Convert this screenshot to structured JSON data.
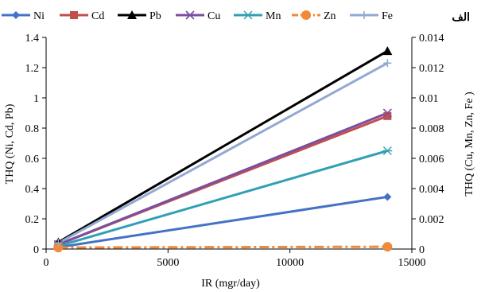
{
  "chart_data": {
    "type": "line",
    "panel_label": "الف",
    "xlabel": "IR (mgr/day)",
    "ylabel_left": "THQ (Ni, Cd, Pb)",
    "ylabel_right": "THQ (Cu, Mn, Zn, Fe )",
    "xlim": [
      0,
      15000
    ],
    "ylim_left": [
      0,
      1.4
    ],
    "ylim_right": [
      0,
      0.014
    ],
    "x_ticks": [
      "0",
      "5000",
      "10000",
      "15000"
    ],
    "y_left_ticks": [
      "0",
      "0.2",
      "0.4",
      "0.6",
      "0.8",
      "1",
      "1.2",
      "1.4"
    ],
    "y_right_ticks": [
      "0",
      "0.002",
      "0.004",
      "0.006",
      "0.008",
      "0.01",
      "0.012",
      "0.014"
    ],
    "x": [
      500,
      14000
    ],
    "legend_position": "top",
    "series": [
      {
        "name": "Ni",
        "axis": "left",
        "values": [
          0.012,
          0.345
        ],
        "color": "#4472c4",
        "marker": "diamond",
        "dash": "solid"
      },
      {
        "name": "Cd",
        "axis": "left",
        "values": [
          0.03,
          0.88
        ],
        "color": "#c0504d",
        "marker": "square",
        "dash": "solid"
      },
      {
        "name": "Pb",
        "axis": "left",
        "values": [
          0.045,
          1.31
        ],
        "color": "#000000",
        "marker": "triangle",
        "dash": "solid"
      },
      {
        "name": "Cu",
        "axis": "right",
        "values": [
          0.0003,
          0.009
        ],
        "color": "#7b4fa0",
        "marker": "x",
        "dash": "solid"
      },
      {
        "name": "Mn",
        "axis": "right",
        "values": [
          0.0002,
          0.0065
        ],
        "color": "#31a0b5",
        "marker": "star",
        "dash": "solid"
      },
      {
        "name": "Zn",
        "axis": "right",
        "values": [
          0.0001,
          0.00015
        ],
        "color": "#f08a3a",
        "marker": "circle",
        "dash": "dashdot"
      },
      {
        "name": "Fe",
        "axis": "right",
        "values": [
          0.0004,
          0.0123
        ],
        "color": "#93a9d2",
        "marker": "plus",
        "dash": "solid"
      }
    ]
  }
}
